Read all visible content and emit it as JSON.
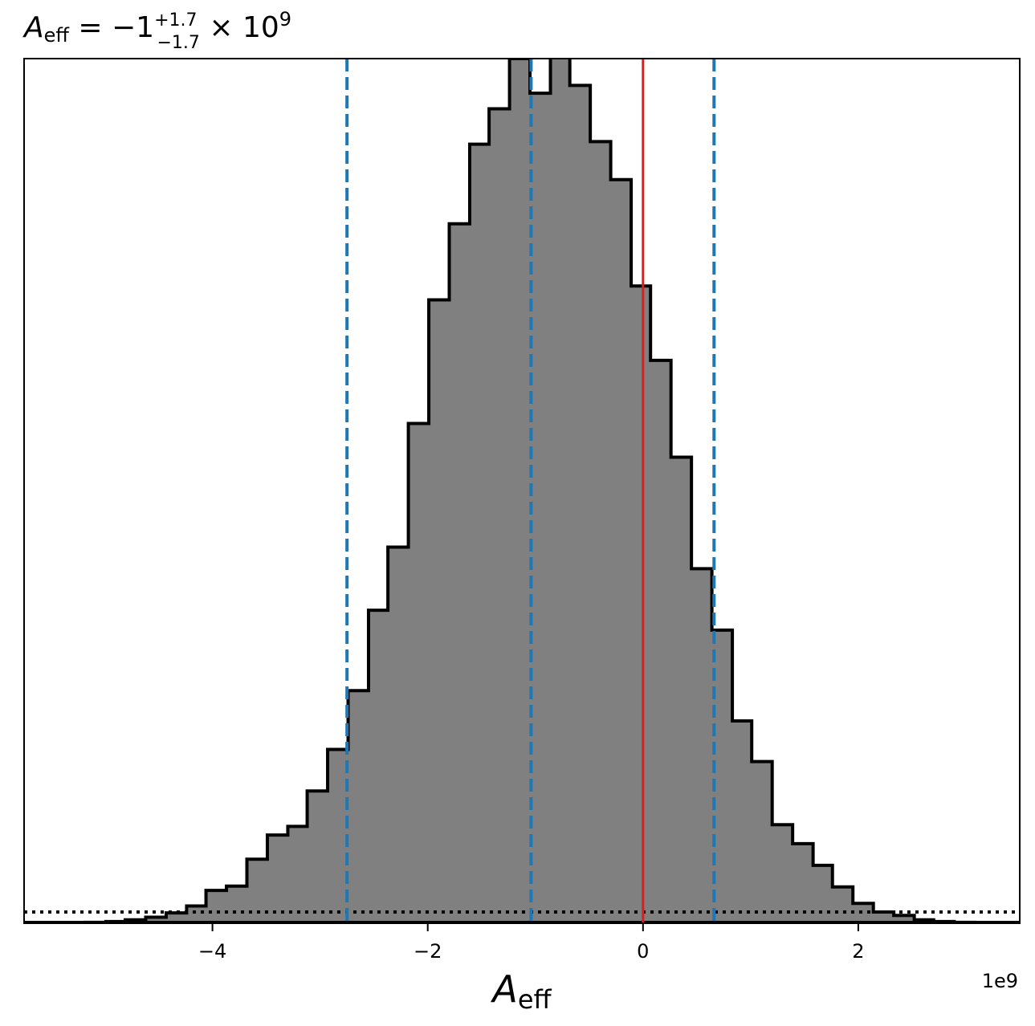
{
  "chart_data": {
    "type": "bar",
    "title_parts": {
      "symbol": "A",
      "symbol_sub": "eff",
      "equals": " = −1",
      "sup": "+1.7",
      "sub": "−1.7",
      "times": " × 10",
      "exp": "9"
    },
    "xlabel_parts": {
      "symbol": "A",
      "sub": "eff"
    },
    "ylabel": "",
    "offset_label": "1e9",
    "x_scale": 1000000000.0,
    "xlim": [
      -5.75,
      3.5
    ],
    "ylim": [
      0,
      1.0
    ],
    "xticks": [
      -4,
      -2,
      0,
      2
    ],
    "xtick_labels": [
      "−4",
      "−2",
      "0",
      "2"
    ],
    "grid": false,
    "histogram": {
      "bin_edges": [
        -5.37,
        -5.18,
        -4.99,
        -4.81,
        -4.62,
        -4.43,
        -4.24,
        -4.06,
        -3.87,
        -3.68,
        -3.49,
        -3.3,
        -3.12,
        -2.93,
        -2.74,
        -2.55,
        -2.37,
        -2.18,
        -1.99,
        -1.8,
        -1.61,
        -1.43,
        -1.24,
        -1.05,
        -0.86,
        -0.68,
        -0.49,
        -0.3,
        -0.11,
        0.07,
        0.26,
        0.45,
        0.64,
        0.83,
        1.01,
        1.2,
        1.39,
        1.58,
        1.76,
        1.95,
        2.14,
        2.33,
        2.52,
        2.7,
        2.89,
        3.08,
        3.27
      ],
      "values": [
        0.0005,
        0.001,
        0.002,
        0.004,
        0.007,
        0.012,
        0.02,
        0.038,
        0.043,
        0.074,
        0.102,
        0.112,
        0.153,
        0.201,
        0.269,
        0.362,
        0.435,
        0.578,
        0.721,
        0.809,
        0.901,
        0.942,
        1.0,
        0.96,
        1.015,
        0.969,
        0.904,
        0.86,
        0.737,
        0.651,
        0.539,
        0.41,
        0.339,
        0.234,
        0.187,
        0.114,
        0.092,
        0.067,
        0.042,
        0.023,
        0.013,
        0.009,
        0.004,
        0.002,
        0.001,
        0.0005
      ],
      "fill_color": "#808080",
      "edge_color": "#000000"
    },
    "vlines": [
      {
        "x": -2.75,
        "color": "#1f77b4",
        "style": "dashed"
      },
      {
        "x": -1.04,
        "color": "#1f77b4",
        "style": "dashed"
      },
      {
        "x": 0.66,
        "color": "#1f77b4",
        "style": "dashed"
      },
      {
        "x": 0.0,
        "color": "#e41a1c",
        "style": "solid"
      }
    ],
    "hlines": [
      {
        "y": 0.013,
        "color": "#000000",
        "style": "dotted"
      }
    ]
  }
}
